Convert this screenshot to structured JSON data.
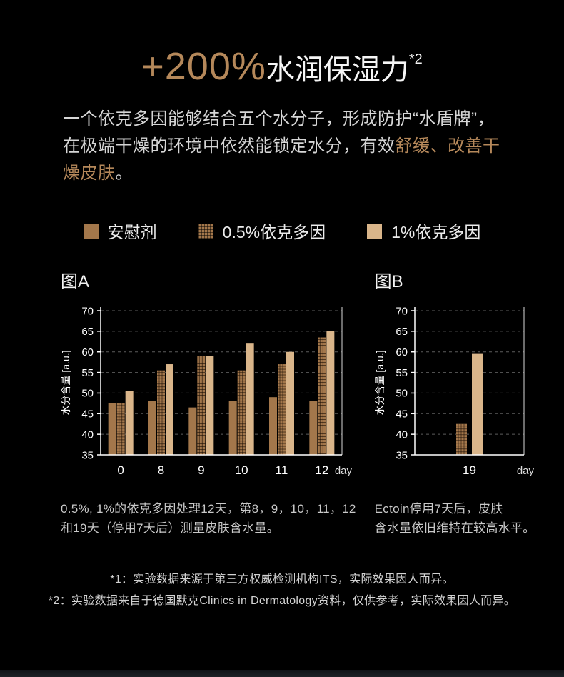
{
  "colors": {
    "gold": "#b5885a",
    "background": "#000000",
    "axis": "#ffffff",
    "gridline": "#5c5c5c"
  },
  "page": {
    "title": {
      "pct": "+200%",
      "text": "水润保湿力",
      "sup": "*2"
    },
    "intro": {
      "normal1": "一个依克多因能够结合五个水分子，形成防护“水盾牌”，在极端干燥的环境中依然能锁定水分，有效",
      "highlight": "舒缓、改善干燥皮肤",
      "normal2": "。"
    },
    "legend": [
      {
        "label": "安慰剂",
        "style": "solid",
        "color": "#a3774b"
      },
      {
        "label": "0.5%依克多因",
        "style": "textured",
        "color": "#a3774b"
      },
      {
        "label": "1%依克多因",
        "style": "solid",
        "color": "#d9b58a"
      }
    ],
    "captions": {
      "chartA": "0.5%, 1%的依克多因处理12天，第8，9，10，11，12\n和19天（停用7天后）测量皮肤含水量。",
      "chartB": "Ectoin停用7天后，皮肤\n含水量依旧维持在较高水平。"
    },
    "footnotes": [
      "*1：实验数据来源于第三方权威检测机构ITS，实际效果因人而异。",
      "*2：实验数据来自于德国默克Clinics in Dermatology资料，仅供参考，实际效果因人而异。"
    ]
  },
  "chart_data": [
    {
      "type": "bar",
      "title": "图A",
      "xlabel": "day",
      "ylabel": "水分含量 [a.u.]",
      "ylim": [
        35,
        70
      ],
      "yticks": [
        35,
        40,
        45,
        50,
        55,
        60,
        65,
        70
      ],
      "grid": "dashed-horizontal",
      "categories": [
        "0",
        "8",
        "9",
        "10",
        "11",
        "12"
      ],
      "series": [
        {
          "name": "安慰剂",
          "style": "solid",
          "color": "#a3774b",
          "values": [
            47.5,
            48,
            46.5,
            48,
            49,
            48
          ]
        },
        {
          "name": "0.5%依克多因",
          "style": "textured",
          "color": "#a3774b",
          "values": [
            47.5,
            55.5,
            59,
            55.5,
            57,
            63.5
          ]
        },
        {
          "name": "1%依克多因",
          "style": "solid",
          "color": "#d9b58a",
          "values": [
            50.5,
            57,
            59,
            62,
            60,
            65
          ]
        }
      ]
    },
    {
      "type": "bar",
      "title": "图B",
      "xlabel": "day",
      "ylabel": "水分含量 [a.u.]",
      "ylim": [
        35,
        70
      ],
      "yticks": [
        35,
        40,
        45,
        50,
        55,
        60,
        65,
        70
      ],
      "grid": "dashed-horizontal",
      "categories": [
        "19"
      ],
      "series": [
        {
          "name": "0.5%依克多因",
          "style": "textured",
          "color": "#a3774b",
          "values": [
            42.5
          ]
        },
        {
          "name": "1%依克多因",
          "style": "solid",
          "color": "#d9b58a",
          "values": [
            59.5
          ]
        }
      ]
    }
  ]
}
